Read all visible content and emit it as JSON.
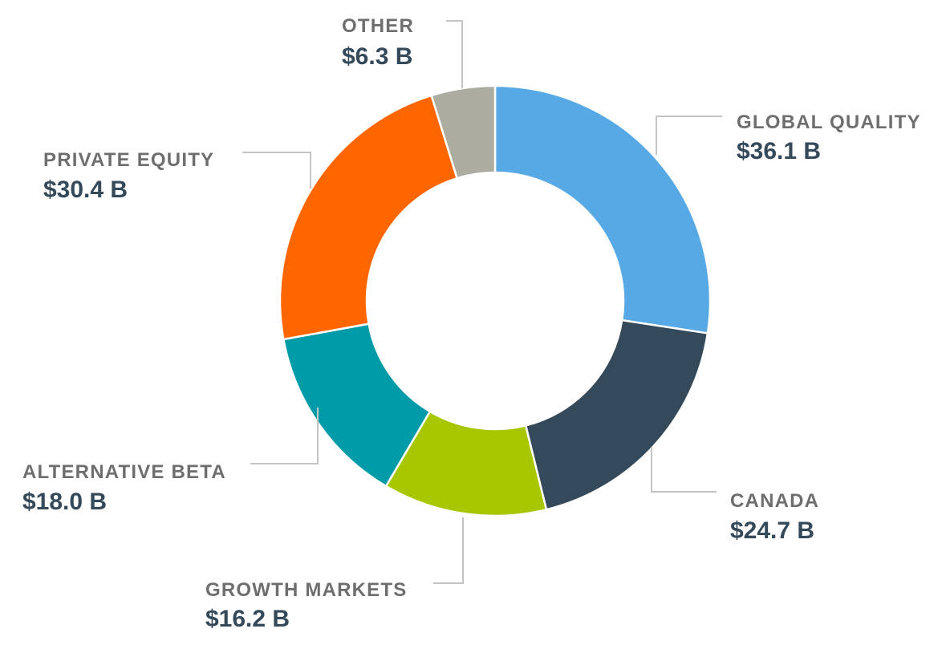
{
  "chart_data": {
    "type": "pie",
    "donut": true,
    "title": "",
    "unit": "$ B",
    "slices": [
      {
        "label": "GLOBAL QUALITY",
        "value": 36.1,
        "display": "$36.1 B",
        "color": "#56a9e4"
      },
      {
        "label": "CANADA",
        "value": 24.7,
        "display": "$24.7 B",
        "color": "#344a5a"
      },
      {
        "label": "GROWTH MARKETS",
        "value": 16.2,
        "display": "$16.2 B",
        "color": "#a8c700"
      },
      {
        "label": "ALTERNATIVE BETA",
        "value": 18.0,
        "display": "$18.0 B",
        "color": "#009ba8"
      },
      {
        "label": "PRIVATE EQUITY",
        "value": 30.4,
        "display": "$30.4 B",
        "color": "#ff6600"
      },
      {
        "label": "OTHER",
        "value": 6.3,
        "display": "$6.3 B",
        "color": "#acada0"
      }
    ]
  }
}
